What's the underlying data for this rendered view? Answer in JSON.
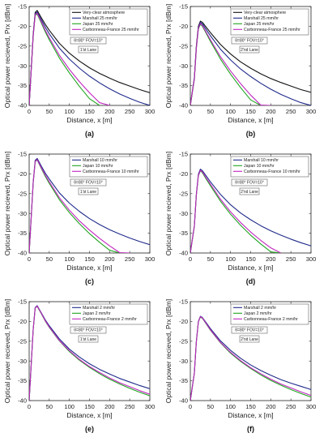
{
  "colors": {
    "black": "#111111",
    "navy": "#1f2a8a",
    "green": "#1fa51f",
    "magenta": "#c026c0",
    "annotation_box": "#ffffff"
  },
  "chart_data": [
    {
      "type": "line",
      "panel_label": "(a)",
      "xlabel": "Distance, x [m]",
      "ylabel": "Optical power recieved, Prx [dBm]",
      "xlim": [
        0,
        300
      ],
      "ylim": [
        -40,
        -15
      ],
      "xticks": [
        0,
        50,
        100,
        150,
        200,
        250,
        300
      ],
      "yticks": [
        -15,
        -20,
        -25,
        -30,
        -35,
        -40
      ],
      "grid": false,
      "legend_position": "top-right",
      "annotation": "θ=80° FOV=10°",
      "lane": "1'st Lane",
      "x": [
        0,
        5,
        10,
        15,
        20,
        30,
        40,
        50,
        75,
        100,
        125,
        150,
        175,
        200,
        225,
        250,
        275,
        300
      ],
      "series": [
        {
          "name": "Very-clear atmosphere",
          "color": "#111111",
          "values": [
            -40,
            -31,
            -22,
            -16.5,
            -16,
            -17.8,
            -19.5,
            -21,
            -24.3,
            -26.8,
            -28.8,
            -30.5,
            -31.9,
            -33.1,
            -34.2,
            -35.1,
            -36,
            -36.8
          ]
        },
        {
          "name": "Marshall 25 mm/hr",
          "color": "#1f2a8a",
          "values": [
            -40,
            -31.2,
            -22.3,
            -16.8,
            -16.4,
            -18.3,
            -20.2,
            -21.9,
            -25.5,
            -28.3,
            -30.6,
            -32.6,
            -34.3,
            -35.8,
            -37.1,
            -38.2,
            -39.2,
            -40
          ]
        },
        {
          "name": "Japan 25 mm/hr",
          "color": "#1fa51f",
          "values": [
            -40,
            -31.4,
            -22.6,
            -17.2,
            -16.9,
            -19.1,
            -21.4,
            -23.4,
            -28,
            -31.8,
            -35.2,
            -38.3,
            -40,
            null,
            null,
            null,
            null,
            null
          ]
        },
        {
          "name": "Carbonneau-France 25 mm/hr",
          "color": "#c026c0",
          "values": [
            -40,
            -31.3,
            -22.5,
            -17,
            -16.7,
            -18.8,
            -21,
            -22.9,
            -27.3,
            -30.9,
            -34,
            -36.8,
            -39.3,
            -40,
            null,
            null,
            null,
            null
          ]
        }
      ]
    },
    {
      "type": "line",
      "panel_label": "(b)",
      "xlabel": "Distance, x [m]",
      "ylabel": "Optical power recieved, Prx [dBm]",
      "xlim": [
        0,
        300
      ],
      "ylim": [
        -40,
        -15
      ],
      "xticks": [
        0,
        50,
        100,
        150,
        200,
        250,
        300
      ],
      "yticks": [
        -15,
        -20,
        -25,
        -30,
        -35,
        -40
      ],
      "grid": false,
      "legend_position": "top-right",
      "annotation": "θ=80° FOV=10°",
      "lane": "2'nd Lane",
      "x": [
        0,
        10,
        15,
        20,
        25,
        30,
        40,
        50,
        75,
        100,
        125,
        150,
        175,
        200,
        225,
        250,
        275,
        300
      ],
      "series": [
        {
          "name": "Very-clear atmosphere",
          "color": "#111111",
          "values": [
            -40,
            -33,
            -25,
            -20,
            -18.7,
            -19,
            -20.3,
            -21.6,
            -24.6,
            -27,
            -29,
            -30.6,
            -32,
            -33.2,
            -34.2,
            -35.1,
            -36,
            -36.7
          ]
        },
        {
          "name": "Marshall 25 mm/hr",
          "color": "#1f2a8a",
          "values": [
            -40,
            -33.2,
            -25.3,
            -20.3,
            -19,
            -19.4,
            -20.9,
            -22.4,
            -25.8,
            -28.5,
            -30.8,
            -32.7,
            -34.4,
            -35.9,
            -37.2,
            -38.3,
            -39.3,
            -40
          ]
        },
        {
          "name": "Japan 25 mm/hr",
          "color": "#1fa51f",
          "values": [
            -40,
            -33.4,
            -25.6,
            -20.7,
            -19.5,
            -20,
            -21.9,
            -23.8,
            -28.3,
            -32.1,
            -35.5,
            -38.6,
            -40,
            null,
            null,
            null,
            null,
            null
          ]
        },
        {
          "name": "Carbonneau-France 25 mm/hr",
          "color": "#c026c0",
          "values": [
            -40,
            -33.3,
            -25.5,
            -20.5,
            -19.3,
            -19.8,
            -21.6,
            -23.4,
            -27.7,
            -31.3,
            -34.5,
            -37.4,
            -39.9,
            -40,
            null,
            null,
            null,
            null
          ]
        }
      ]
    },
    {
      "type": "line",
      "panel_label": "(c)",
      "xlabel": "Distance, x [m]",
      "ylabel": "Optical power recieved, Prx [dBm]",
      "xlim": [
        0,
        300
      ],
      "ylim": [
        -40,
        -15
      ],
      "xticks": [
        0,
        50,
        100,
        150,
        200,
        250,
        300
      ],
      "yticks": [
        -15,
        -20,
        -25,
        -30,
        -35,
        -40
      ],
      "grid": false,
      "legend_position": "top-right",
      "annotation": "θ=80° FOV=10°",
      "lane": "1'st Lane",
      "x": [
        0,
        5,
        10,
        15,
        20,
        30,
        40,
        50,
        75,
        100,
        125,
        150,
        175,
        200,
        225,
        250,
        275,
        300
      ],
      "series": [
        {
          "name": "Marshall 10 mm/hr",
          "color": "#1f2a8a",
          "values": [
            -40,
            -31.1,
            -22.1,
            -16.6,
            -16.1,
            -18,
            -19.8,
            -21.3,
            -24.8,
            -27.4,
            -29.5,
            -31.3,
            -32.8,
            -34.1,
            -35.2,
            -36.2,
            -37.1,
            -37.9
          ]
        },
        {
          "name": "Japan 10 mm/hr",
          "color": "#1fa51f",
          "values": [
            -40,
            -31.2,
            -22.4,
            -16.9,
            -16.5,
            -18.6,
            -20.6,
            -22.4,
            -26.5,
            -29.8,
            -32.6,
            -35.1,
            -37.3,
            -39.3,
            -40,
            null,
            null,
            null
          ]
        },
        {
          "name": "Carbonneau-France 10 mm/hr",
          "color": "#c026c0",
          "values": [
            -40,
            -31.2,
            -22.3,
            -16.8,
            -16.4,
            -18.4,
            -20.3,
            -22,
            -26,
            -29.2,
            -31.9,
            -34.2,
            -36.3,
            -38.2,
            -39.9,
            -40,
            null,
            null
          ]
        }
      ]
    },
    {
      "type": "line",
      "panel_label": "(d)",
      "xlabel": "Distance, x [m]",
      "ylabel": "Optical power recieved, Prx [dBm]",
      "xlim": [
        0,
        300
      ],
      "ylim": [
        -40,
        -15
      ],
      "xticks": [
        0,
        50,
        100,
        150,
        200,
        250,
        300
      ],
      "yticks": [
        -15,
        -20,
        -25,
        -30,
        -35,
        -40
      ],
      "grid": false,
      "legend_position": "top-right",
      "annotation": "θ=80° FOV=10°",
      "lane": "2'nd Lane",
      "x": [
        0,
        10,
        15,
        20,
        25,
        30,
        40,
        50,
        75,
        100,
        125,
        150,
        175,
        200,
        225,
        250,
        275,
        300
      ],
      "series": [
        {
          "name": "Marshall 10 mm/hr",
          "color": "#1f2a8a",
          "values": [
            -40,
            -33.1,
            -25.1,
            -20.1,
            -18.8,
            -19.2,
            -20.6,
            -22,
            -25.2,
            -27.8,
            -29.9,
            -31.6,
            -33.1,
            -34.4,
            -35.5,
            -36.5,
            -37.4,
            -38.2
          ]
        },
        {
          "name": "Japan 10 mm/hr",
          "color": "#1fa51f",
          "values": [
            -40,
            -33.3,
            -25.4,
            -20.5,
            -19.2,
            -19.7,
            -21.4,
            -23,
            -26.9,
            -30.2,
            -33,
            -35.5,
            -37.7,
            -39.7,
            -40,
            null,
            null,
            null
          ]
        },
        {
          "name": "Carbonneau-France 10 mm/hr",
          "color": "#c026c0",
          "values": [
            -40,
            -33.2,
            -25.3,
            -20.4,
            -19.1,
            -19.5,
            -21.1,
            -22.6,
            -26.4,
            -29.6,
            -32.3,
            -34.7,
            -36.8,
            -38.7,
            -40,
            null,
            null,
            null
          ]
        }
      ]
    },
    {
      "type": "line",
      "panel_label": "(e)",
      "xlabel": "Distance, x [m]",
      "ylabel": "Optical power recieved, Prx [dBm]",
      "xlim": [
        0,
        300
      ],
      "ylim": [
        -40,
        -15
      ],
      "xticks": [
        0,
        50,
        100,
        150,
        200,
        250,
        300
      ],
      "yticks": [
        -15,
        -20,
        -25,
        -30,
        -35,
        -40
      ],
      "grid": false,
      "legend_position": "top-right",
      "annotation": "θ=80° FOV=10°",
      "lane": "1'st Lane",
      "x": [
        0,
        5,
        10,
        15,
        20,
        30,
        40,
        50,
        75,
        100,
        125,
        150,
        175,
        200,
        225,
        250,
        275,
        300
      ],
      "series": [
        {
          "name": "Marshall 2 mm/hr",
          "color": "#1f2a8a",
          "values": [
            -40,
            -31,
            -22,
            -16.5,
            -16,
            -17.8,
            -19.6,
            -21.1,
            -24.4,
            -27,
            -29,
            -30.7,
            -32.1,
            -33.3,
            -34.4,
            -35.3,
            -36.2,
            -37
          ]
        },
        {
          "name": "Japan 2 mm/hr",
          "color": "#1fa51f",
          "values": [
            -40,
            -31.1,
            -22.1,
            -16.6,
            -16.2,
            -18,
            -19.9,
            -21.5,
            -24.9,
            -27.6,
            -29.8,
            -31.6,
            -33.2,
            -34.6,
            -35.8,
            -36.9,
            -37.9,
            -38.8
          ]
        },
        {
          "name": "Carbonneau-France 2 mm/hr",
          "color": "#c026c0",
          "values": [
            -40,
            -31.1,
            -22.1,
            -16.6,
            -16.1,
            -17.9,
            -19.8,
            -21.4,
            -24.8,
            -27.4,
            -29.6,
            -31.4,
            -32.9,
            -34.3,
            -35.5,
            -36.5,
            -37.5,
            -38.4
          ]
        }
      ]
    },
    {
      "type": "line",
      "panel_label": "(f)",
      "xlabel": "Distance, x [m]",
      "ylabel": "Optical power recieved, Prx [dBm]",
      "xlim": [
        0,
        300
      ],
      "ylim": [
        -40,
        -15
      ],
      "xticks": [
        0,
        50,
        100,
        150,
        200,
        250,
        300
      ],
      "yticks": [
        -15,
        -20,
        -25,
        -30,
        -35,
        -40
      ],
      "grid": false,
      "legend_position": "top-right",
      "annotation": "θ=80° FOV=10°",
      "lane": "2'nd Lane",
      "x": [
        0,
        10,
        15,
        20,
        25,
        30,
        40,
        50,
        75,
        100,
        125,
        150,
        175,
        200,
        225,
        250,
        275,
        300
      ],
      "series": [
        {
          "name": "Marshall 2 mm/hr",
          "color": "#1f2a8a",
          "values": [
            -40,
            -33,
            -25,
            -20,
            -18.7,
            -19,
            -20.4,
            -21.8,
            -24.9,
            -27.3,
            -29.3,
            -31,
            -32.4,
            -33.6,
            -34.7,
            -35.6,
            -36.4,
            -37.2
          ]
        },
        {
          "name": "Japan 2 mm/hr",
          "color": "#1fa51f",
          "values": [
            -40,
            -33.1,
            -25.1,
            -20.1,
            -18.9,
            -19.2,
            -20.7,
            -22.2,
            -25.4,
            -28,
            -30.1,
            -31.9,
            -33.5,
            -34.9,
            -36.1,
            -37.2,
            -38.2,
            -39.1
          ]
        },
        {
          "name": "Carbonneau-France 2 mm/hr",
          "color": "#c026c0",
          "values": [
            -40,
            -33.1,
            -25.1,
            -20.1,
            -18.8,
            -19.1,
            -20.6,
            -22.1,
            -25.3,
            -27.8,
            -29.9,
            -31.7,
            -33.2,
            -34.6,
            -35.8,
            -36.8,
            -37.8,
            -38.7
          ]
        }
      ]
    }
  ]
}
